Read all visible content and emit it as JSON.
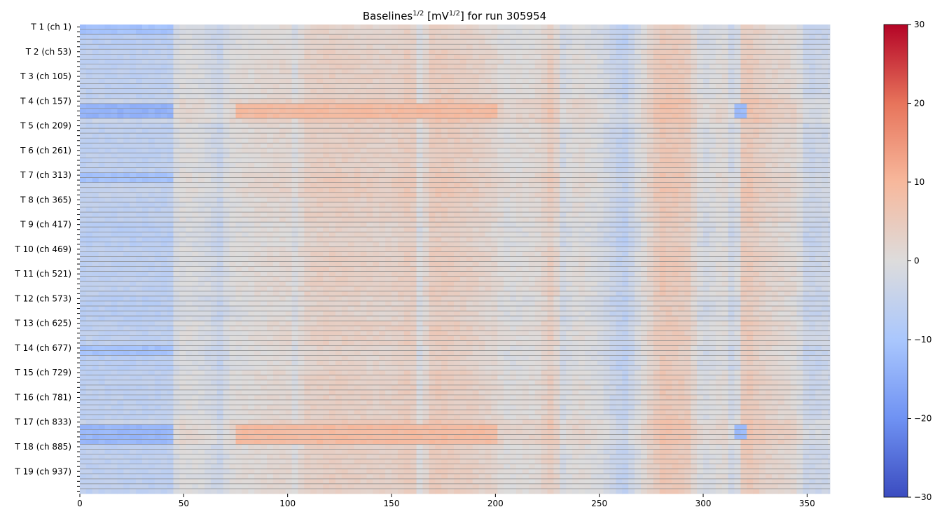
{
  "chart_data": {
    "type": "heatmap",
    "title": {
      "prefix": "Baselines",
      "prefix_sup": "1/2",
      "unit_open": " [mV",
      "unit_sup": "1/2",
      "unit_close": "] for run 305954"
    },
    "xlabel": "",
    "ylabel": "",
    "xlim": [
      0,
      361
    ],
    "x_ticks": [
      0,
      50,
      100,
      150,
      200,
      250,
      300,
      350
    ],
    "y_tick_labels": [
      "T 1 (ch 1)",
      "T 2 (ch 53)",
      "T 3 (ch 105)",
      "T 4 (ch 157)",
      "T 5 (ch 209)",
      "T 6 (ch 261)",
      "T 7 (ch 313)",
      "T 8 (ch 365)",
      "T 9 (ch 417)",
      "T 10 (ch 469)",
      "T 11 (ch 521)",
      "T 12 (ch 573)",
      "T 13 (ch 625)",
      "T 14 (ch 677)",
      "T 15 (ch 729)",
      "T 16 (ch 781)",
      "T 17 (ch 833)",
      "T 18 (ch 885)",
      "T 19 (ch 937)"
    ],
    "n_rows": 95,
    "rows_per_label": 5,
    "colormap": "coolwarm",
    "colormap_stops": [
      "#3b4cc0",
      "#6f92f3",
      "#aac7fd",
      "#dddcdc",
      "#f7b89c",
      "#e7745b",
      "#b40426"
    ],
    "color_range": [
      -30,
      30
    ],
    "colorbar_ticks": [
      30,
      20,
      10,
      0,
      -10,
      -20,
      -30
    ],
    "grid": "horizontal lines between rows",
    "column_profile": [
      [
        0,
        -6
      ],
      [
        44,
        -6
      ],
      [
        45,
        -2
      ],
      [
        50,
        0
      ],
      [
        60,
        -1
      ],
      [
        68,
        -4
      ],
      [
        72,
        0
      ],
      [
        85,
        1
      ],
      [
        100,
        2
      ],
      [
        104,
        -1
      ],
      [
        108,
        3
      ],
      [
        120,
        4
      ],
      [
        150,
        3
      ],
      [
        160,
        5
      ],
      [
        163,
        -1
      ],
      [
        170,
        5
      ],
      [
        185,
        4
      ],
      [
        200,
        2
      ],
      [
        205,
        0
      ],
      [
        220,
        1
      ],
      [
        228,
        5
      ],
      [
        232,
        -2
      ],
      [
        240,
        1
      ],
      [
        250,
        -1
      ],
      [
        262,
        -6
      ],
      [
        270,
        0
      ],
      [
        280,
        6
      ],
      [
        292,
        5
      ],
      [
        300,
        -2
      ],
      [
        310,
        1
      ],
      [
        315,
        -4
      ],
      [
        320,
        6
      ],
      [
        330,
        3
      ],
      [
        345,
        1
      ],
      [
        350,
        -4
      ],
      [
        361,
        -3
      ]
    ],
    "row_offsets": [
      {
        "rows": [
          0,
          1,
          2,
          3,
          4
        ],
        "offset": -1
      },
      {
        "rows": [
          10,
          11,
          12,
          13,
          14
        ],
        "offset": 0
      },
      {
        "rows": [
          15,
          16,
          17,
          18,
          19
        ],
        "offset": 2
      },
      {
        "rows": [
          25,
          26,
          27,
          28,
          29
        ],
        "offset": 0
      },
      {
        "rows": [
          30,
          31,
          32,
          33,
          34
        ],
        "offset": 1
      },
      {
        "rows": [
          40,
          41,
          42,
          43,
          44
        ],
        "offset": -1
      },
      {
        "rows": [
          55,
          56,
          57,
          58,
          59
        ],
        "offset": -1
      },
      {
        "rows": [
          65,
          66,
          67,
          68,
          69
        ],
        "offset": -1
      },
      {
        "rows": [
          80,
          81,
          82,
          83,
          84
        ],
        "offset": 2
      }
    ],
    "highlight_blocks": [
      {
        "rows": [
          16,
          17,
          18
        ],
        "x_range": [
          0,
          44
        ],
        "value": -14
      },
      {
        "rows": [
          81,
          82,
          83,
          84
        ],
        "x_range": [
          0,
          44
        ],
        "value": -13
      },
      {
        "rows": [
          0,
          1
        ],
        "x_range": [
          0,
          44
        ],
        "value": -11
      },
      {
        "rows": [
          30,
          31
        ],
        "x_range": [
          0,
          44
        ],
        "value": -11
      },
      {
        "rows": [
          65,
          66
        ],
        "x_range": [
          0,
          44
        ],
        "value": -11
      },
      {
        "rows": [
          16,
          17,
          18
        ],
        "x_range": [
          74,
          200
        ],
        "value": 9
      },
      {
        "rows": [
          81,
          82,
          83,
          84
        ],
        "x_range": [
          74,
          200
        ],
        "value": 9
      },
      {
        "rows": [
          16,
          17,
          18
        ],
        "x_range": [
          315,
          320
        ],
        "value": -12
      },
      {
        "rows": [
          81,
          82,
          83
        ],
        "x_range": [
          315,
          320
        ],
        "value": -12
      }
    ]
  }
}
